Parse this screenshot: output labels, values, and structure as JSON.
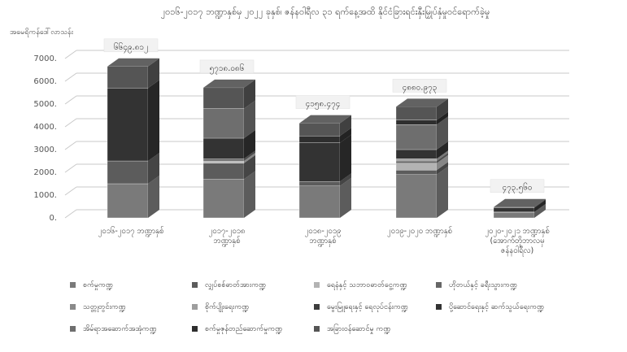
{
  "chart_data": {
    "type": "bar",
    "stacked": true,
    "three_d": true,
    "title": "၂၀၁၆-၂၀၁၇ ဘဏ္ဍာနှစ်မှ ၂၀၂၂ ခုနှစ်၊ ဇန်နဝါရီလ ၃၁ ရက်နေ့အထိ နိုင်ငံခြားရင်းနှီးမြှုပ်နှံမှုဝင်ရောက်ခဲ့မှု",
    "ylabel": "အမေရိကန်ဒေါ်လာသန်း",
    "xlabel": "",
    "ylim": [
      0,
      7000
    ],
    "yticks": [
      "0.",
      "1000.",
      "2000.",
      "3000.",
      "4000.",
      "5000.",
      "6000.",
      "7000."
    ],
    "grid": true,
    "legend_position": "bottom",
    "categories": [
      [
        "၂၀၁၆-၂၀၁၇ ဘဏ္ဍာနှစ်"
      ],
      [
        "၂၀၁၇-၂၀၁၈",
        "ဘဏ္ဍာနှစ်"
      ],
      [
        "၂၀၁၈-၂၀၁၉",
        "ဘဏ္ဍာနှစ်"
      ],
      [
        "၂၀၁၉-၂၀၂၀ ဘဏ္ဍာနှစ်"
      ],
      [
        "၂၀၂၀-၂၀၂၁ ဘဏ္ဍာနှစ်",
        "(အောက်တိုဘာလမှ",
        "ဇန်နဝါရီလ)"
      ]
    ],
    "totals": [
      "၆၆၄၉.၈၁၂",
      "၅၇၁၈.၀၈၆",
      "၄၁၅၈.၄၇၄",
      "၄၈၈၀.၉၇၃",
      "၄၇၃.၅၆၀"
    ],
    "total_values": [
      6649.812,
      5718.086,
      4158.474,
      4880.973,
      473.56
    ],
    "series": [
      {
        "name": "စက်မှုကဏ္ဍ",
        "color": "#7a7a7a",
        "values": [
          1500,
          1700,
          1400,
          1900,
          230
        ]
      },
      {
        "name": "လျှပ်စစ်ဓာတ်အားကဏ္ဍ",
        "color": "#5c5c5c",
        "values": [
          1000,
          700,
          200,
          200,
          30
        ]
      },
      {
        "name": "ရေနံနှင့် သဘာဝဓာတ်ငွေ့ကဏ္ဍ",
        "color": "#b3b3b3",
        "values": [
          0,
          100,
          0,
          300,
          0
        ]
      },
      {
        "name": "ဟိုတယ်နှင့် ခရီးသွားကဏ္ဍ",
        "color": "#666666",
        "values": [
          0,
          100,
          0,
          100,
          0
        ]
      },
      {
        "name": "သတ္တုတွင်းကဏ္ဍ",
        "color": "#8a8a8a",
        "values": [
          0,
          0,
          0,
          0,
          0
        ]
      },
      {
        "name": "စိုက်ပျိုးရေးကဏ္ဍ",
        "color": "#9e9e9e",
        "values": [
          0,
          0,
          0,
          100,
          0
        ]
      },
      {
        "name": "မွေးမြူရေးနှင့် ရေလုပ်ငန်းကဏ္ဍ",
        "color": "#3d3d3d",
        "values": [
          0,
          0,
          0,
          0,
          0
        ]
      },
      {
        "name": "ပို့ဆောင်ရေးနှင့် ဆက်သွယ်ရေးကဏ္ဍ",
        "color": "#333333",
        "values": [
          3200,
          900,
          1700,
          400,
          180
        ]
      },
      {
        "name": "အိမ်ရာအဆောက်အအုံကဏ္ဍ",
        "color": "#6e6e6e",
        "values": [
          0,
          1300,
          0,
          1100,
          0
        ]
      },
      {
        "name": "စက်မှုဇုန်တည်ဆောက်မှုကဏ္ဍ",
        "color": "#2e2e2e",
        "values": [
          0,
          0,
          300,
          200,
          0
        ]
      },
      {
        "name": "အခြားဝန်ဆောင်မှု ကဏ္ဍ",
        "color": "#555555",
        "values": [
          950,
          918,
          558,
          581,
          34
        ]
      }
    ]
  }
}
